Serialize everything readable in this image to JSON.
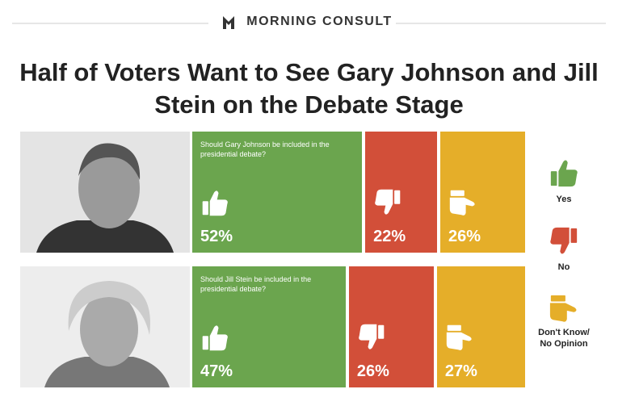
{
  "header": {
    "brand": "MORNING CONSULT"
  },
  "chart_data": {
    "type": "stacked_bar",
    "title": "Half of Voters Want to See Gary Johnson and Jill Stein on the Debate Stage",
    "categories": [
      "Should Gary Johnson be included in the presidential debate?",
      "Should Jill Stein be included in the presidential debate?"
    ],
    "series": [
      {
        "name": "Yes",
        "color": "#6ba54e",
        "values": [
          52,
          47
        ],
        "value_labels": [
          "52%",
          "47%"
        ]
      },
      {
        "name": "No",
        "color": "#d24f39",
        "values": [
          22,
          26
        ],
        "value_labels": [
          "22%",
          "26%"
        ]
      },
      {
        "name": "Don't Know/ No Opinion",
        "color": "#e5ae29",
        "values": [
          26,
          27
        ],
        "value_labels": [
          "26%",
          "27%"
        ]
      }
    ]
  }
}
